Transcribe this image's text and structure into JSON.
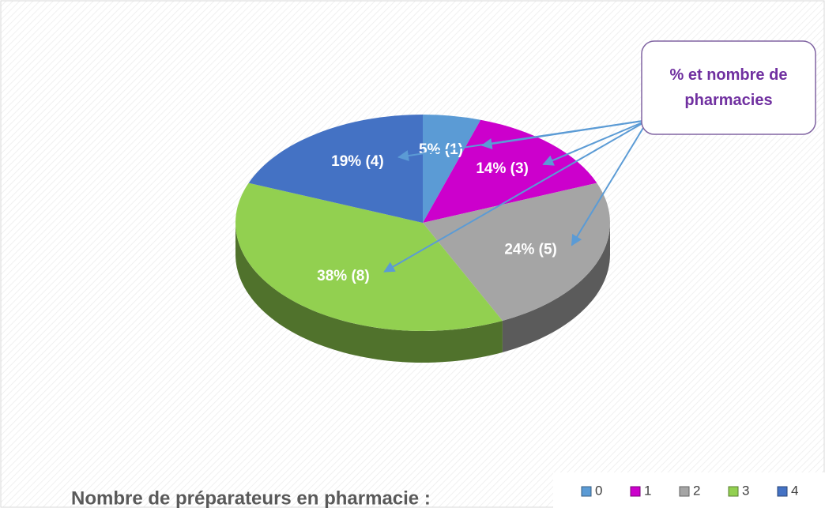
{
  "chart_data": {
    "type": "pie",
    "annotation": "% et nombre de pharmacies",
    "legend_title": "Nombre de préparateurs en pharmacie :",
    "categories": [
      "0",
      "1",
      "2",
      "3",
      "4"
    ],
    "values": [
      5,
      14,
      24,
      38,
      19
    ],
    "value_labels": [
      "5% (1)",
      "14% (3)",
      "24% (5)",
      "38% (8)",
      "19% (4)"
    ],
    "colors": [
      "#5b9bd5",
      "#cc00cc",
      "#a5a5a5",
      "#92d050",
      "#4472c4"
    ],
    "legend": "bottom-right"
  }
}
